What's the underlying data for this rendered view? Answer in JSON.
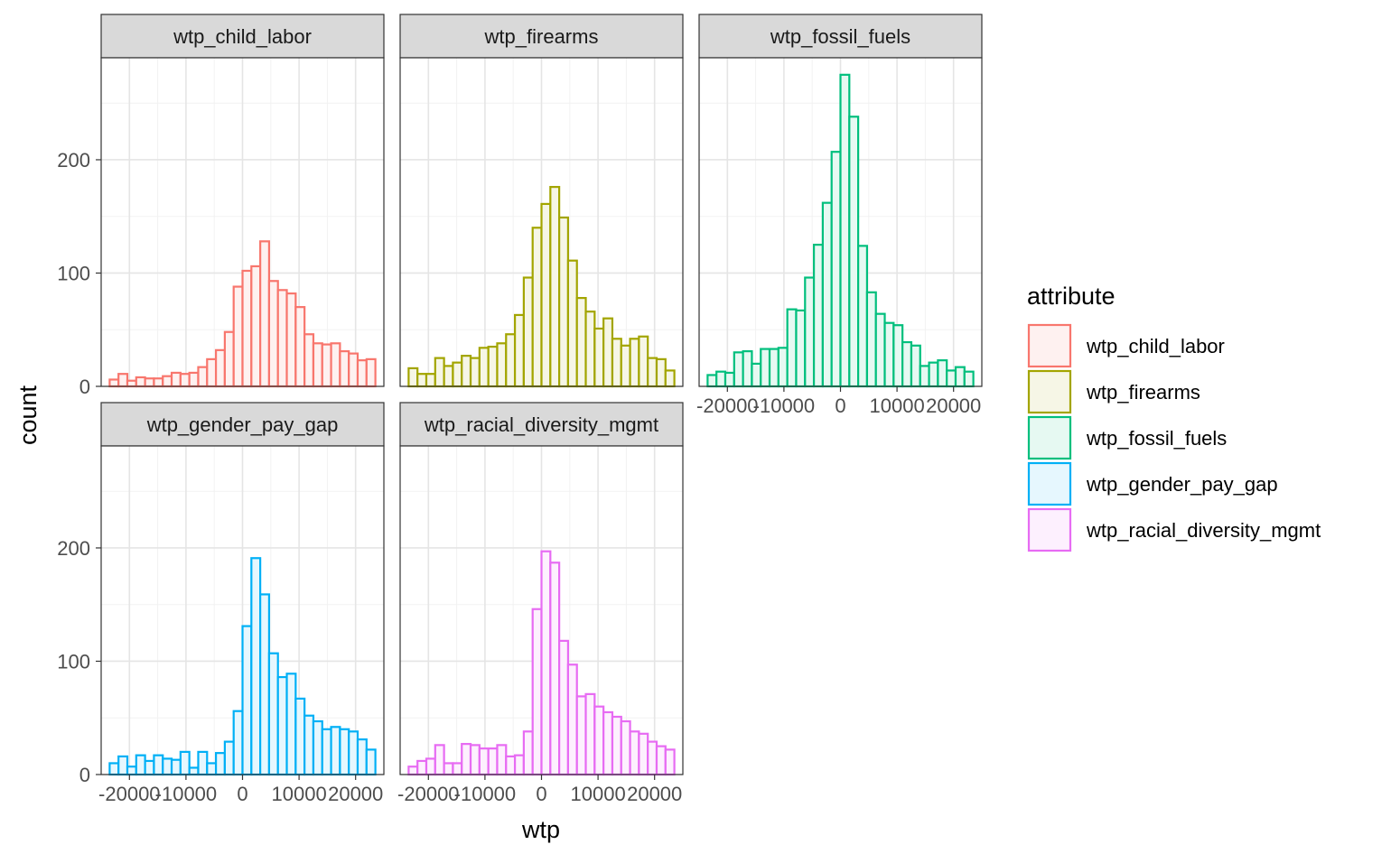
{
  "chart_data": {
    "type": "bar",
    "subtype": "faceted-histogram",
    "xlabel": "wtp",
    "ylabel": "count",
    "xlim": [
      -25000,
      25000
    ],
    "ylim": [
      0,
      290
    ],
    "x_ticks": [
      -20000,
      -10000,
      0,
      10000,
      20000
    ],
    "x_tick_labels": [
      "-20000",
      "-10000",
      "0",
      "10000",
      "20000"
    ],
    "y_ticks": [
      0,
      100,
      200
    ],
    "y_tick_labels": [
      "0",
      "100",
      "200"
    ],
    "bin_width": 1724.14,
    "grid": true,
    "legend": {
      "title": "attribute",
      "position": "right",
      "entries": [
        "wtp_child_labor",
        "wtp_firearms",
        "wtp_fossil_fuels",
        "wtp_gender_pay_gap",
        "wtp_racial_diversity_mgmt"
      ]
    },
    "series": [
      {
        "name": "wtp_child_labor",
        "color": "#F8766D",
        "fill": "#FEF1F0",
        "values": [
          6,
          11,
          5,
          8,
          7,
          7,
          9,
          12,
          11,
          12,
          17,
          24,
          32,
          48,
          88,
          102,
          106,
          128,
          93,
          85,
          82,
          70,
          46,
          38,
          37,
          38,
          31,
          29,
          23,
          24
        ]
      },
      {
        "name": "wtp_firearms",
        "color": "#A3A500",
        "fill": "#F6F6E6",
        "values": [
          16,
          11,
          11,
          25,
          18,
          21,
          27,
          25,
          34,
          35,
          38,
          46,
          63,
          96,
          140,
          161,
          176,
          149,
          111,
          78,
          66,
          51,
          60,
          42,
          36,
          42,
          44,
          25,
          24,
          14
        ]
      },
      {
        "name": "wtp_fossil_fuels",
        "color": "#00BF7D",
        "fill": "#E6F9F2",
        "values": [
          10,
          13,
          12,
          30,
          31,
          20,
          33,
          33,
          34,
          68,
          67,
          96,
          125,
          162,
          207,
          275,
          238,
          124,
          83,
          64,
          56,
          54,
          39,
          36,
          18,
          21,
          23,
          14,
          17,
          13
        ]
      },
      {
        "name": "wtp_gender_pay_gap",
        "color": "#00B0F6",
        "fill": "#E6F7FE",
        "values": [
          10,
          16,
          7,
          17,
          12,
          17,
          14,
          13,
          20,
          6,
          20,
          10,
          19,
          29,
          56,
          131,
          191,
          159,
          107,
          86,
          89,
          67,
          52,
          47,
          40,
          42,
          40,
          38,
          31,
          22
        ]
      },
      {
        "name": "wtp_racial_diversity_mgmt",
        "color": "#E76BF3",
        "fill": "#FDF0FE",
        "values": [
          7,
          12,
          14,
          26,
          10,
          10,
          27,
          26,
          23,
          23,
          26,
          16,
          17,
          38,
          146,
          197,
          187,
          118,
          97,
          69,
          71,
          60,
          55,
          51,
          47,
          38,
          36,
          29,
          25,
          22
        ]
      }
    ]
  }
}
